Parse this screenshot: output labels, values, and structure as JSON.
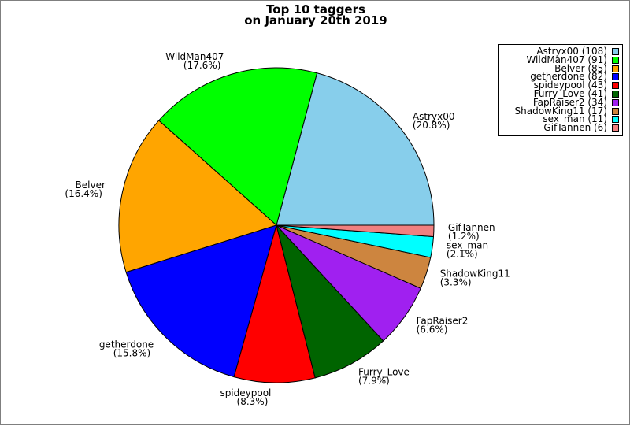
{
  "chart_data": {
    "type": "pie",
    "title": "Top 10 taggers",
    "subtitle": "on January 20th 2019",
    "slices": [
      {
        "label": "Astryx00",
        "value": 108,
        "percent": "(20.8%)",
        "legend": "Astryx00 (108)",
        "color": "#87ceeb"
      },
      {
        "label": "WildMan407",
        "value": 91,
        "percent": "(17.6%)",
        "legend": "WildMan407 (91)",
        "color": "#00ff00"
      },
      {
        "label": "Belver",
        "value": 85,
        "percent": "(16.4%)",
        "legend": "Belver (85)",
        "color": "#ffa500"
      },
      {
        "label": "getherdone",
        "value": 82,
        "percent": "(15.8%)",
        "legend": "getherdone (82)",
        "color": "#0000ff"
      },
      {
        "label": "spideypool",
        "value": 43,
        "percent": "(8.3%)",
        "legend": "spideypool (43)",
        "color": "#ff0000"
      },
      {
        "label": "Furry_Love",
        "value": 41,
        "percent": "(7.9%)",
        "legend": "Furry_Love (41)",
        "color": "#006400"
      },
      {
        "label": "FapRaiser2",
        "value": 34,
        "percent": "(6.6%)",
        "legend": "FapRaiser2 (34)",
        "color": "#a020f0"
      },
      {
        "label": "ShadowKing11",
        "value": 17,
        "percent": "(3.3%)",
        "legend": "ShadowKing11 (17)",
        "color": "#cd853f"
      },
      {
        "label": "sex_man",
        "value": 11,
        "percent": "(2.1%)",
        "legend": "sex_man (11)",
        "color": "#00ffff"
      },
      {
        "label": "GifTannen",
        "value": 6,
        "percent": "(1.2%)",
        "legend": "GifTannen (6)",
        "color": "#f08080"
      }
    ],
    "start_angle": "3 o'clock",
    "direction": "counterclockwise",
    "legend_position": "top-right"
  }
}
